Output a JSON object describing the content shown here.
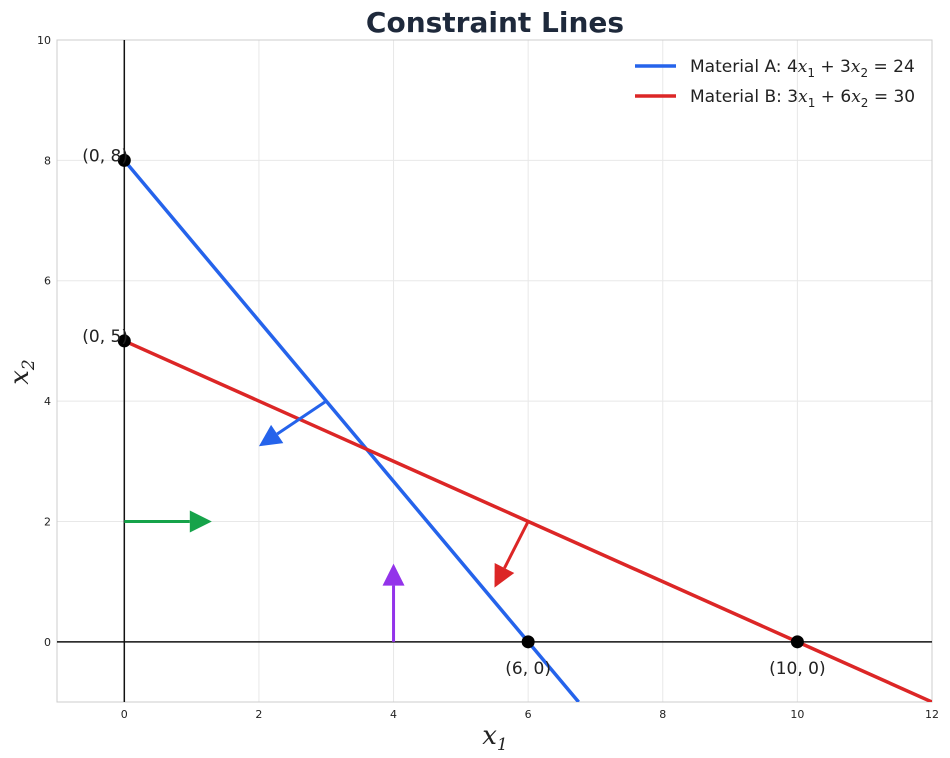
{
  "chart_data": {
    "type": "line",
    "title": "Constraint Lines",
    "xlabel": {
      "main": "x",
      "sub": "1"
    },
    "ylabel": {
      "main": "x",
      "sub": "2"
    },
    "xlim": [
      -1,
      12
    ],
    "ylim": [
      -1,
      10
    ],
    "xticks": [
      "0",
      "2",
      "4",
      "6",
      "8",
      "10",
      "12"
    ],
    "yticks": [
      "0",
      "2",
      "4",
      "6",
      "8",
      "10"
    ],
    "grid": true,
    "legend_position": "top-right",
    "series": [
      {
        "name": "Material A: 4x₁ + 3x₂ = 24",
        "legend": {
          "prefix": "Material A: ",
          "coef1": "4",
          "coef2": "3",
          "rhs": "24"
        },
        "color": "#2563eb",
        "x": [
          0,
          6.75
        ],
        "y": [
          8,
          -1
        ]
      },
      {
        "name": "Material B: 3x₁ + 6x₂ = 30",
        "legend": {
          "prefix": "Material B: ",
          "coef1": "3",
          "coef2": "6",
          "rhs": "30"
        },
        "color": "#dc2626",
        "x": [
          0,
          12
        ],
        "y": [
          5,
          -1
        ]
      }
    ],
    "points": [
      {
        "x": 0,
        "y": 8,
        "label": "(0, 8)"
      },
      {
        "x": 0,
        "y": 5,
        "label": "(0, 5)"
      },
      {
        "x": 6,
        "y": 0,
        "label": "(6, 0)"
      },
      {
        "x": 10,
        "y": 0,
        "label": "(10, 0)"
      }
    ],
    "arrows": [
      {
        "name": "material-a-direction",
        "from": [
          3,
          4
        ],
        "to": [
          2,
          3.25
        ],
        "color": "#2563eb"
      },
      {
        "name": "material-b-direction",
        "from": [
          6,
          2
        ],
        "to": [
          5.5,
          0.9
        ],
        "color": "#dc2626"
      },
      {
        "name": "x1-nonnegativity",
        "from": [
          0,
          2
        ],
        "to": [
          1.3,
          2
        ],
        "color": "#16a34a"
      },
      {
        "name": "x2-nonnegativity",
        "from": [
          4,
          0
        ],
        "to": [
          4,
          1.3
        ],
        "color": "#9333ea"
      }
    ]
  }
}
